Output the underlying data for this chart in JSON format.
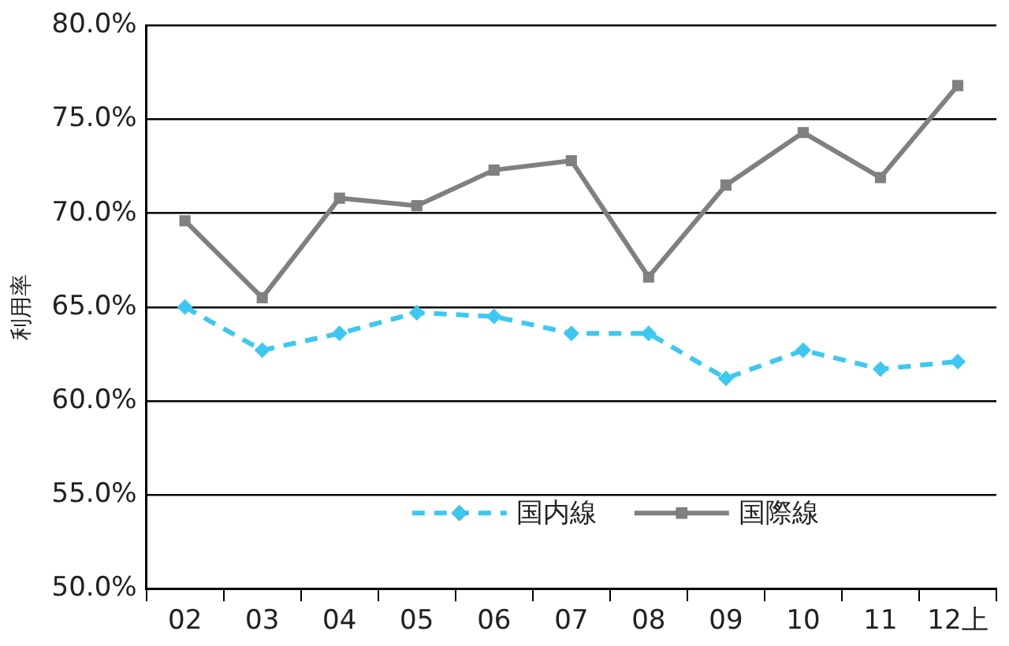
{
  "chart_data": {
    "type": "line",
    "ylabel": "利用率",
    "categories": [
      "02",
      "03",
      "04",
      "05",
      "06",
      "07",
      "08",
      "09",
      "10",
      "11",
      "12上"
    ],
    "series": [
      {
        "name": "国内線",
        "color": "#3cc8f0",
        "marker": "diamond",
        "line_style": "dashed",
        "values": [
          65.0,
          62.7,
          63.6,
          64.7,
          64.5,
          63.6,
          63.6,
          61.2,
          62.7,
          61.7,
          62.1
        ]
      },
      {
        "name": "国際線",
        "color": "#808080",
        "marker": "square",
        "line_style": "solid",
        "values": [
          69.6,
          65.5,
          70.8,
          70.4,
          72.3,
          72.8,
          66.6,
          71.5,
          74.3,
          71.9,
          76.8
        ]
      }
    ],
    "ylim": [
      50,
      80
    ],
    "yticks": [
      {
        "value": 50,
        "label": "50.0%"
      },
      {
        "value": 55,
        "label": "55.0%"
      },
      {
        "value": 60,
        "label": "60.0%"
      },
      {
        "value": 65,
        "label": "65.0%"
      },
      {
        "value": 70,
        "label": "70.0%"
      },
      {
        "value": 75,
        "label": "75.0%"
      },
      {
        "value": 80,
        "label": "80.0%"
      }
    ],
    "grid": "y",
    "legend": "bottom"
  }
}
